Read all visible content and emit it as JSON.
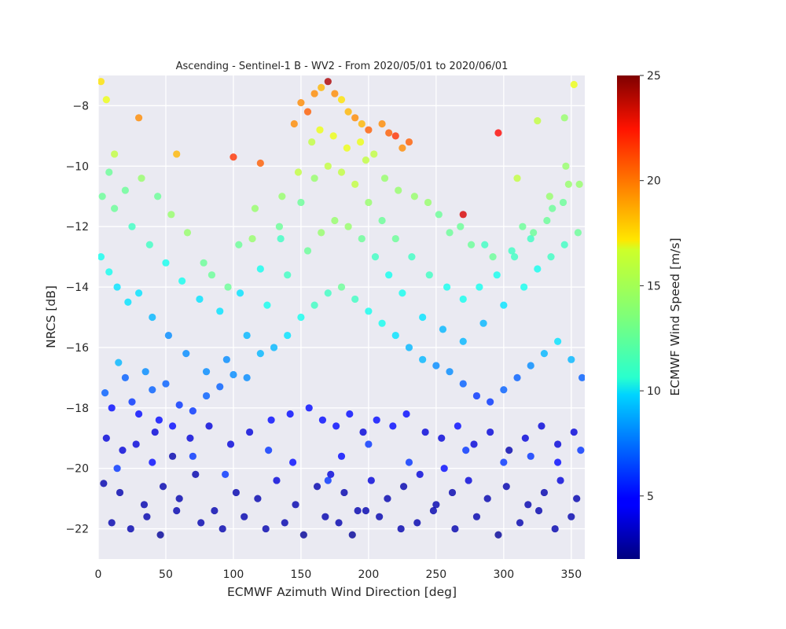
{
  "chart_data": {
    "type": "scatter",
    "title": "Ascending - Sentinel-1 B - WV2 - From 2020/05/01 to 2020/06/01",
    "xlabel": "ECMWF Azimuth Wind Direction [deg]",
    "ylabel": "NRCS [dB]",
    "xlim": [
      0,
      360
    ],
    "ylim": [
      -23,
      -7
    ],
    "x_ticks": [
      "0",
      "50",
      "100",
      "150",
      "200",
      "250",
      "300",
      "350"
    ],
    "y_ticks": [
      "-8",
      "-10",
      "-12",
      "-14",
      "-16",
      "-18",
      "-20",
      "-22"
    ],
    "grid": true,
    "colorbar": {
      "label": "ECMWF Wind Speed [m/s]",
      "colormap": "jet",
      "range": [
        2,
        25
      ],
      "ticks": [
        "5",
        "10",
        "15",
        "20",
        "25"
      ]
    },
    "series": [
      {
        "x": [
          5,
          10,
          15,
          20,
          25,
          30,
          35,
          40,
          45,
          50,
          55,
          60,
          70,
          80,
          90,
          100,
          110,
          120,
          130,
          140,
          150,
          160,
          170,
          180,
          190,
          200,
          210,
          220,
          230,
          240,
          250,
          260,
          270,
          280,
          290,
          300,
          310,
          320,
          330,
          340,
          350,
          358,
          2,
          8,
          14,
          22,
          30,
          40,
          52,
          65,
          80,
          95,
          110,
          125,
          140,
          155,
          165,
          175,
          185,
          195,
          205,
          215,
          225,
          240,
          255,
          270,
          285,
          300,
          315,
          325,
          335,
          345,
          355,
          3,
          12,
          25,
          38,
          50,
          62,
          75,
          90,
          105,
          120,
          135,
          150,
          160,
          170,
          180,
          190,
          200,
          210,
          220,
          232,
          245,
          258,
          270,
          282,
          295,
          308,
          320,
          332,
          344,
          356,
          6,
          18,
          28,
          42,
          55,
          68,
          82,
          98,
          112,
          128,
          142,
          156,
          166,
          176,
          186,
          196,
          206,
          218,
          228,
          242,
          254,
          266,
          278,
          290,
          304,
          316,
          328,
          340,
          352,
          4,
          16,
          34,
          48,
          60,
          72,
          86,
          102,
          118,
          132,
          146,
          162,
          172,
          182,
          192,
          202,
          214,
          226,
          238,
          250,
          262,
          274,
          288,
          302,
          318,
          330,
          342,
          354,
          10,
          24,
          36,
          46,
          58,
          76,
          92,
          108,
          124,
          138,
          152,
          168,
          178,
          188,
          198,
          208,
          224,
          236,
          248,
          264,
          280,
          296,
          312,
          326,
          338,
          350,
          2,
          6,
          30,
          58,
          100,
          120,
          145,
          150,
          155,
          160,
          165,
          170,
          175,
          180,
          185,
          190,
          195,
          200,
          210,
          215,
          220,
          225,
          230,
          270,
          296,
          310,
          325,
          345,
          352,
          8,
          20,
          44,
          66,
          84,
          104,
          116,
          136,
          158,
          174,
          184,
          198,
          212,
          234,
          252,
          268,
          286,
          306,
          322,
          336,
          348,
          12,
          32,
          54,
          78,
          96,
          114,
          134,
          148,
          164,
          194,
          204,
          222,
          244,
          260,
          276,
          292,
          314,
          334,
          346,
          14,
          40,
          70,
          94,
          126,
          144,
          170,
          180,
          200,
          230,
          256,
          272,
          300,
          320,
          340,
          357
        ],
        "y": [
          -17.5,
          -18.0,
          -16.5,
          -17.0,
          -17.8,
          -18.2,
          -16.8,
          -17.4,
          -18.4,
          -17.2,
          -18.6,
          -17.9,
          -18.1,
          -17.6,
          -17.3,
          -16.9,
          -17.0,
          -16.2,
          -16.0,
          -15.6,
          -15.0,
          -14.6,
          -14.2,
          -14.0,
          -14.4,
          -14.8,
          -15.2,
          -15.6,
          -16.0,
          -16.4,
          -16.6,
          -16.8,
          -17.2,
          -17.6,
          -17.8,
          -17.4,
          -17.0,
          -16.6,
          -16.2,
          -15.8,
          -16.4,
          -17.0,
          -13.0,
          -13.5,
          -14.0,
          -14.5,
          -14.2,
          -15.0,
          -15.6,
          -16.2,
          -16.8,
          -16.4,
          -15.6,
          -14.6,
          -13.6,
          -12.8,
          -12.2,
          -11.8,
          -12.0,
          -12.4,
          -13.0,
          -13.6,
          -14.2,
          -15.0,
          -15.4,
          -15.8,
          -15.2,
          -14.6,
          -14.0,
          -13.4,
          -13.0,
          -12.6,
          -12.2,
          -11.0,
          -11.4,
          -12.0,
          -12.6,
          -13.2,
          -13.8,
          -14.4,
          -14.8,
          -14.2,
          -13.4,
          -12.4,
          -11.2,
          -10.4,
          -10.0,
          -10.2,
          -10.6,
          -11.2,
          -11.8,
          -12.4,
          -13.0,
          -13.6,
          -14.0,
          -14.4,
          -14.0,
          -13.6,
          -13.0,
          -12.4,
          -11.8,
          -11.2,
          -10.6,
          -19.0,
          -19.4,
          -19.2,
          -18.8,
          -19.6,
          -19.0,
          -18.6,
          -19.2,
          -18.8,
          -18.4,
          -18.2,
          -18.0,
          -18.4,
          -18.6,
          -18.2,
          -18.8,
          -18.4,
          -18.6,
          -18.2,
          -18.8,
          -19.0,
          -18.6,
          -19.2,
          -18.8,
          -19.4,
          -19.0,
          -18.6,
          -19.2,
          -18.8,
          -20.5,
          -20.8,
          -21.2,
          -20.6,
          -21.0,
          -20.2,
          -21.4,
          -20.8,
          -21.0,
          -20.4,
          -21.2,
          -20.6,
          -20.2,
          -20.8,
          -21.4,
          -20.4,
          -21.0,
          -20.6,
          -20.2,
          -21.2,
          -20.8,
          -20.4,
          -21.0,
          -20.6,
          -21.2,
          -20.8,
          -20.4,
          -21.0,
          -21.8,
          -22.0,
          -21.6,
          -22.2,
          -21.4,
          -21.8,
          -22.0,
          -21.6,
          -22.0,
          -21.8,
          -22.2,
          -21.6,
          -21.8,
          -22.2,
          -21.4,
          -21.6,
          -22.0,
          -21.8,
          -21.4,
          -22.0,
          -21.6,
          -22.2,
          -21.8,
          -21.4,
          -22.0,
          -21.6,
          -7.2,
          -7.8,
          -8.4,
          -9.6,
          -9.7,
          -9.9,
          -8.6,
          -7.9,
          -8.2,
          -7.6,
          -7.4,
          -7.2,
          -7.6,
          -7.8,
          -8.2,
          -8.4,
          -8.6,
          -8.8,
          -8.6,
          -8.9,
          -9.0,
          -9.4,
          -9.2,
          -11.6,
          -8.9,
          -10.4,
          -8.5,
          -8.4,
          -7.3,
          -10.2,
          -10.8,
          -11.0,
          -12.2,
          -13.6,
          -12.6,
          -11.4,
          -11.0,
          -9.2,
          -9.0,
          -9.4,
          -9.8,
          -10.4,
          -11.0,
          -11.6,
          -12.0,
          -12.6,
          -12.8,
          -12.2,
          -11.4,
          -10.6,
          -9.6,
          -10.4,
          -11.6,
          -13.2,
          -14.0,
          -12.4,
          -12.0,
          -10.2,
          -8.8,
          -9.2,
          -9.6,
          -10.8,
          -11.2,
          -12.2,
          -12.6,
          -13.0,
          -12.0,
          -11.0,
          -10.0,
          -20.0,
          -19.8,
          -19.6,
          -20.2,
          -19.4,
          -19.8,
          -20.4,
          -19.6,
          -19.2,
          -19.8,
          -20.0,
          -19.4,
          -19.8,
          -19.6,
          -19.8,
          -19.4
        ],
        "wind_speed": [
          7,
          5,
          9,
          7,
          6,
          5,
          8,
          7,
          5,
          7,
          5,
          6,
          6,
          7,
          7,
          8,
          8,
          9,
          9,
          10,
          11,
          12,
          12,
          13,
          12,
          11,
          11,
          10,
          9,
          9,
          8,
          8,
          7,
          6,
          6,
          7,
          7,
          8,
          9,
          10,
          9,
          7,
          11,
          11,
          10,
          10,
          10,
          9,
          8,
          8,
          8,
          8,
          9,
          11,
          12,
          13,
          14,
          14,
          14,
          13,
          12,
          11,
          11,
          10,
          9,
          9,
          9,
          10,
          11,
          11,
          12,
          12,
          13,
          13,
          13,
          12,
          12,
          11,
          11,
          10,
          10,
          10,
          11,
          12,
          13,
          14,
          15,
          15,
          15,
          14,
          13,
          13,
          12,
          12,
          11,
          11,
          11,
          11,
          12,
          12,
          13,
          13,
          14,
          4,
          4,
          4,
          4,
          3,
          4,
          4,
          4,
          4,
          5,
          5,
          5,
          5,
          5,
          5,
          4,
          5,
          5,
          5,
          4,
          4,
          5,
          4,
          4,
          3,
          4,
          4,
          4,
          4,
          3,
          3,
          3,
          3,
          3,
          3,
          3,
          3,
          3,
          4,
          3,
          3,
          4,
          3,
          3,
          4,
          3,
          3,
          4,
          3,
          3,
          4,
          3,
          3,
          3,
          3,
          4,
          3,
          3,
          3,
          3,
          2.5,
          3,
          3,
          3,
          3,
          3,
          3,
          2.5,
          3,
          3,
          2.5,
          3,
          3,
          3,
          3,
          3,
          3,
          3,
          2.5,
          3,
          3,
          3,
          3,
          17,
          16,
          19,
          18,
          21,
          20,
          19,
          19,
          20,
          19,
          18,
          24,
          19,
          17,
          18,
          19,
          18,
          20,
          19,
          20,
          21,
          19,
          20,
          23,
          22,
          15,
          15,
          14,
          16,
          13,
          13,
          13,
          14,
          13,
          13,
          14,
          14,
          15,
          16,
          16,
          15,
          14,
          14,
          13,
          13,
          12,
          12,
          13,
          13,
          14,
          15,
          14,
          14,
          13,
          13,
          14,
          13,
          15,
          16,
          16,
          15,
          14,
          14,
          13,
          13,
          13,
          13,
          14,
          14,
          6,
          5,
          6,
          6,
          6,
          5,
          6,
          5,
          6,
          6,
          5,
          6,
          6,
          6,
          5,
          6
        ]
      }
    ]
  }
}
